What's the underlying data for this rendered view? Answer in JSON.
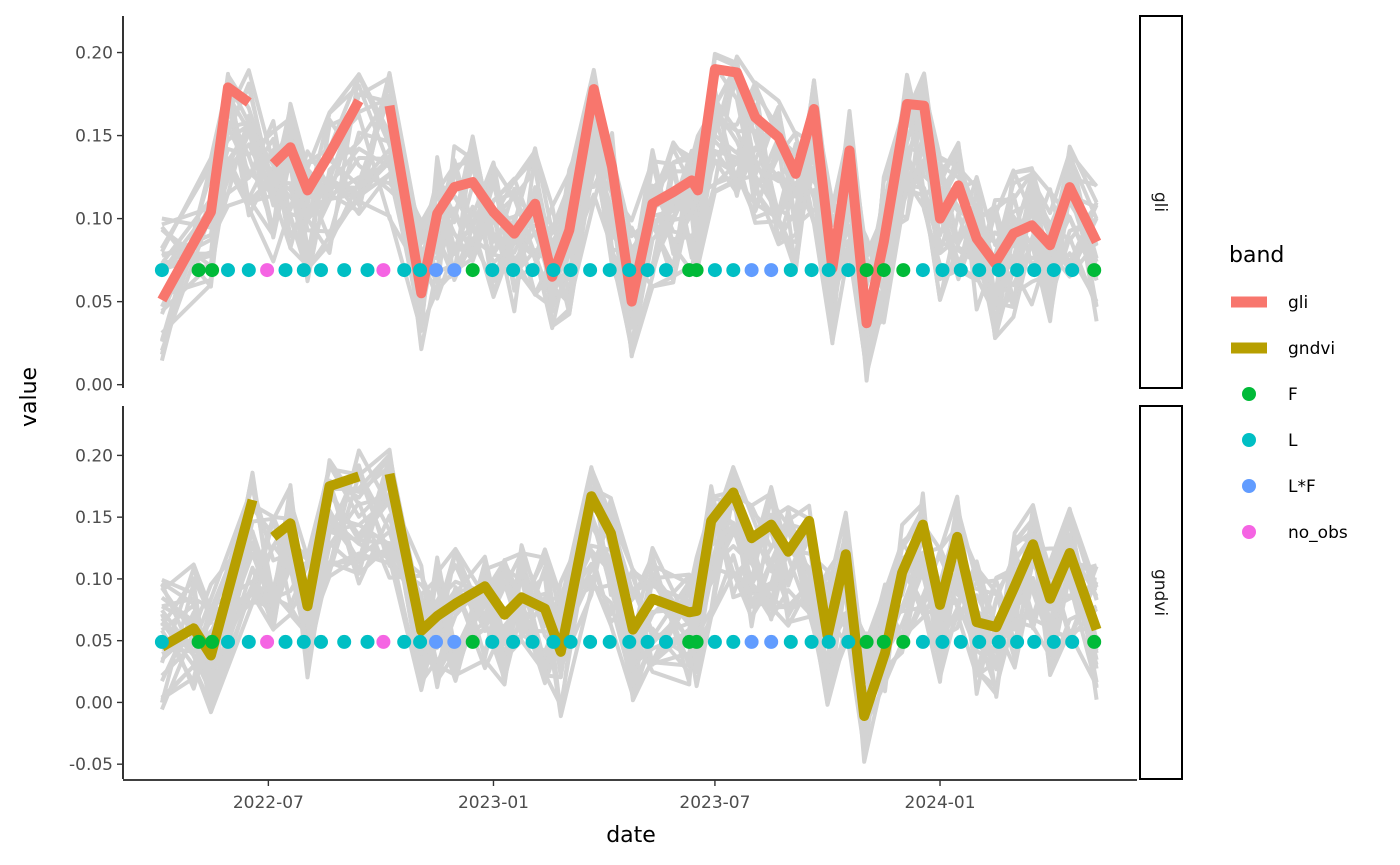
{
  "chart_data": {
    "type": "line",
    "xlabel": "date",
    "ylabel": "value",
    "x_tick_labels": [
      "2022-07",
      "2023-01",
      "2023-07",
      "2024-01"
    ],
    "x_tick_dates": [
      "2022-07-01",
      "2023-01-01",
      "2023-07-01",
      "2024-01-01"
    ],
    "x_range": [
      "2022-03-05",
      "2024-06-10"
    ],
    "grid": false,
    "legend_position": "right",
    "legend": {
      "title": "band",
      "items": [
        {
          "label": "gli",
          "kind": "line",
          "color": "#F8766D"
        },
        {
          "label": "gndvi",
          "kind": "line",
          "color": "#B79F00"
        },
        {
          "label": "F",
          "kind": "point",
          "color": "#00BA38"
        },
        {
          "label": "L",
          "kind": "point",
          "color": "#00BFC4"
        },
        {
          "label": "L*F",
          "kind": "point",
          "color": "#619CFF"
        },
        {
          "label": "no_obs",
          "kind": "point",
          "color": "#F564E3"
        }
      ]
    },
    "background_series_color": "#d3d3d3",
    "panels": [
      {
        "strip": "gli",
        "ylim": [
          -0.002,
          0.222
        ],
        "y_ticks": [
          0.0,
          0.05,
          0.1,
          0.15,
          0.2
        ],
        "y_tick_labels": [
          "0.00",
          "0.05",
          "0.10",
          "0.15",
          "0.20"
        ],
        "highlight_color": "#F8766D",
        "marker_level": 0.069,
        "highlight_segments": [
          [
            [
              "2022-04-05",
              0.051
            ],
            [
              "2022-05-15",
              0.104
            ],
            [
              "2022-05-29",
              0.179
            ],
            [
              "2022-06-15",
              0.17
            ]
          ],
          [
            [
              "2022-07-05",
              0.133
            ],
            [
              "2022-07-19",
              0.143
            ],
            [
              "2022-08-02",
              0.117
            ],
            [
              "2022-08-20",
              0.139
            ],
            [
              "2022-09-13",
              0.171
            ]
          ],
          [
            [
              "2022-10-08",
              0.168
            ],
            [
              "2022-11-03",
              0.055
            ],
            [
              "2022-11-16",
              0.103
            ],
            [
              "2022-11-30",
              0.119
            ],
            [
              "2022-12-15",
              0.122
            ],
            [
              "2023-01-01",
              0.104
            ],
            [
              "2023-01-18",
              0.091
            ],
            [
              "2023-02-04",
              0.109
            ],
            [
              "2023-02-18",
              0.065
            ],
            [
              "2023-03-04",
              0.093
            ],
            [
              "2023-03-24",
              0.178
            ],
            [
              "2023-04-08",
              0.131
            ],
            [
              "2023-04-24",
              0.05
            ],
            [
              "2023-05-11",
              0.109
            ],
            [
              "2023-05-28",
              0.116
            ],
            [
              "2023-06-12",
              0.123
            ],
            [
              "2023-06-17",
              0.117
            ],
            [
              "2023-07-01",
              0.19
            ],
            [
              "2023-07-19",
              0.188
            ],
            [
              "2023-08-03",
              0.161
            ],
            [
              "2023-08-22",
              0.149
            ],
            [
              "2023-09-05",
              0.127
            ],
            [
              "2023-09-20",
              0.166
            ],
            [
              "2023-10-05",
              0.07
            ],
            [
              "2023-10-19",
              0.141
            ],
            [
              "2023-11-02",
              0.037
            ],
            [
              "2023-11-16",
              0.086
            ],
            [
              "2023-12-05",
              0.169
            ],
            [
              "2023-12-19",
              0.168
            ],
            [
              "2024-01-01",
              0.1
            ],
            [
              "2024-01-16",
              0.12
            ],
            [
              "2024-01-31",
              0.088
            ],
            [
              "2024-02-15",
              0.073
            ],
            [
              "2024-03-01",
              0.091
            ],
            [
              "2024-03-16",
              0.096
            ],
            [
              "2024-03-31",
              0.084
            ],
            [
              "2024-04-16",
              0.119
            ],
            [
              "2024-05-08",
              0.086
            ]
          ]
        ]
      },
      {
        "strip": "gndvi",
        "ylim": [
          -0.062,
          0.24
        ],
        "y_ticks": [
          -0.05,
          0.0,
          0.05,
          0.1,
          0.15,
          0.2
        ],
        "y_tick_labels": [
          "-0.05",
          "0.00",
          "0.05",
          "0.10",
          "0.15",
          "0.20"
        ],
        "highlight_color": "#B79F00",
        "marker_level": 0.049,
        "highlight_segments": [
          [
            [
              "2022-04-05",
              0.045
            ],
            [
              "2022-05-01",
              0.06
            ],
            [
              "2022-05-15",
              0.038
            ],
            [
              "2022-06-18",
              0.164
            ]
          ],
          [
            [
              "2022-07-05",
              0.134
            ],
            [
              "2022-07-19",
              0.145
            ],
            [
              "2022-08-02",
              0.078
            ],
            [
              "2022-08-20",
              0.175
            ],
            [
              "2022-09-13",
              0.183
            ]
          ],
          [
            [
              "2022-10-08",
              0.185
            ],
            [
              "2022-11-03",
              0.058
            ],
            [
              "2022-11-16",
              0.07
            ],
            [
              "2022-12-01",
              0.08
            ],
            [
              "2022-12-25",
              0.094
            ],
            [
              "2023-01-10",
              0.071
            ],
            [
              "2023-01-24",
              0.085
            ],
            [
              "2023-02-12",
              0.076
            ],
            [
              "2023-02-25",
              0.041
            ],
            [
              "2023-03-22",
              0.167
            ],
            [
              "2023-04-07",
              0.137
            ],
            [
              "2023-04-25",
              0.059
            ],
            [
              "2023-05-11",
              0.084
            ],
            [
              "2023-06-10",
              0.073
            ],
            [
              "2023-06-16",
              0.074
            ],
            [
              "2023-06-28",
              0.147
            ],
            [
              "2023-07-16",
              0.17
            ],
            [
              "2023-07-31",
              0.133
            ],
            [
              "2023-08-16",
              0.144
            ],
            [
              "2023-08-30",
              0.122
            ],
            [
              "2023-09-16",
              0.147
            ],
            [
              "2023-10-01",
              0.054
            ],
            [
              "2023-10-16",
              0.12
            ],
            [
              "2023-10-31",
              -0.011
            ],
            [
              "2023-11-17",
              0.04
            ],
            [
              "2023-12-01",
              0.105
            ],
            [
              "2023-12-18",
              0.144
            ],
            [
              "2024-01-01",
              0.079
            ],
            [
              "2024-01-15",
              0.134
            ],
            [
              "2024-01-31",
              0.065
            ],
            [
              "2024-02-16",
              0.061
            ],
            [
              "2024-03-02",
              0.094
            ],
            [
              "2024-03-17",
              0.128
            ],
            [
              "2024-03-31",
              0.084
            ],
            [
              "2024-04-16",
              0.121
            ],
            [
              "2024-05-08",
              0.059
            ]
          ]
        ]
      }
    ],
    "observations": [
      {
        "date": "2022-04-05",
        "type": "L"
      },
      {
        "date": "2022-05-05",
        "type": "F"
      },
      {
        "date": "2022-05-16",
        "type": "F"
      },
      {
        "date": "2022-05-29",
        "type": "L"
      },
      {
        "date": "2022-06-15",
        "type": "L"
      },
      {
        "date": "2022-06-30",
        "type": "no_obs"
      },
      {
        "date": "2022-07-15",
        "type": "L"
      },
      {
        "date": "2022-07-30",
        "type": "L"
      },
      {
        "date": "2022-08-13",
        "type": "L"
      },
      {
        "date": "2022-09-01",
        "type": "L"
      },
      {
        "date": "2022-09-20",
        "type": "L"
      },
      {
        "date": "2022-10-03",
        "type": "no_obs"
      },
      {
        "date": "2022-10-20",
        "type": "L"
      },
      {
        "date": "2022-11-02",
        "type": "L"
      },
      {
        "date": "2022-11-15",
        "type": "L*F"
      },
      {
        "date": "2022-11-30",
        "type": "L*F"
      },
      {
        "date": "2022-12-15",
        "type": "F"
      },
      {
        "date": "2022-12-31",
        "type": "L"
      },
      {
        "date": "2023-01-17",
        "type": "L"
      },
      {
        "date": "2023-02-02",
        "type": "L"
      },
      {
        "date": "2023-02-19",
        "type": "L"
      },
      {
        "date": "2023-03-05",
        "type": "L"
      },
      {
        "date": "2023-03-21",
        "type": "L"
      },
      {
        "date": "2023-04-06",
        "type": "L"
      },
      {
        "date": "2023-04-22",
        "type": "L"
      },
      {
        "date": "2023-05-07",
        "type": "L"
      },
      {
        "date": "2023-05-22",
        "type": "L"
      },
      {
        "date": "2023-06-10",
        "type": "F"
      },
      {
        "date": "2023-06-16",
        "type": "F"
      },
      {
        "date": "2023-07-01",
        "type": "L"
      },
      {
        "date": "2023-07-16",
        "type": "L"
      },
      {
        "date": "2023-07-31",
        "type": "L*F"
      },
      {
        "date": "2023-08-16",
        "type": "L*F"
      },
      {
        "date": "2023-09-01",
        "type": "L"
      },
      {
        "date": "2023-09-18",
        "type": "L"
      },
      {
        "date": "2023-10-02",
        "type": "L"
      },
      {
        "date": "2023-10-18",
        "type": "L"
      },
      {
        "date": "2023-11-02",
        "type": "F"
      },
      {
        "date": "2023-11-16",
        "type": "F"
      },
      {
        "date": "2023-12-02",
        "type": "F"
      },
      {
        "date": "2023-12-18",
        "type": "L"
      },
      {
        "date": "2024-01-03",
        "type": "L"
      },
      {
        "date": "2024-01-18",
        "type": "L"
      },
      {
        "date": "2024-02-02",
        "type": "L"
      },
      {
        "date": "2024-02-18",
        "type": "L"
      },
      {
        "date": "2024-03-04",
        "type": "L"
      },
      {
        "date": "2024-03-18",
        "type": "L"
      },
      {
        "date": "2024-04-03",
        "type": "L"
      },
      {
        "date": "2024-04-18",
        "type": "L"
      },
      {
        "date": "2024-05-06",
        "type": "F"
      }
    ]
  }
}
